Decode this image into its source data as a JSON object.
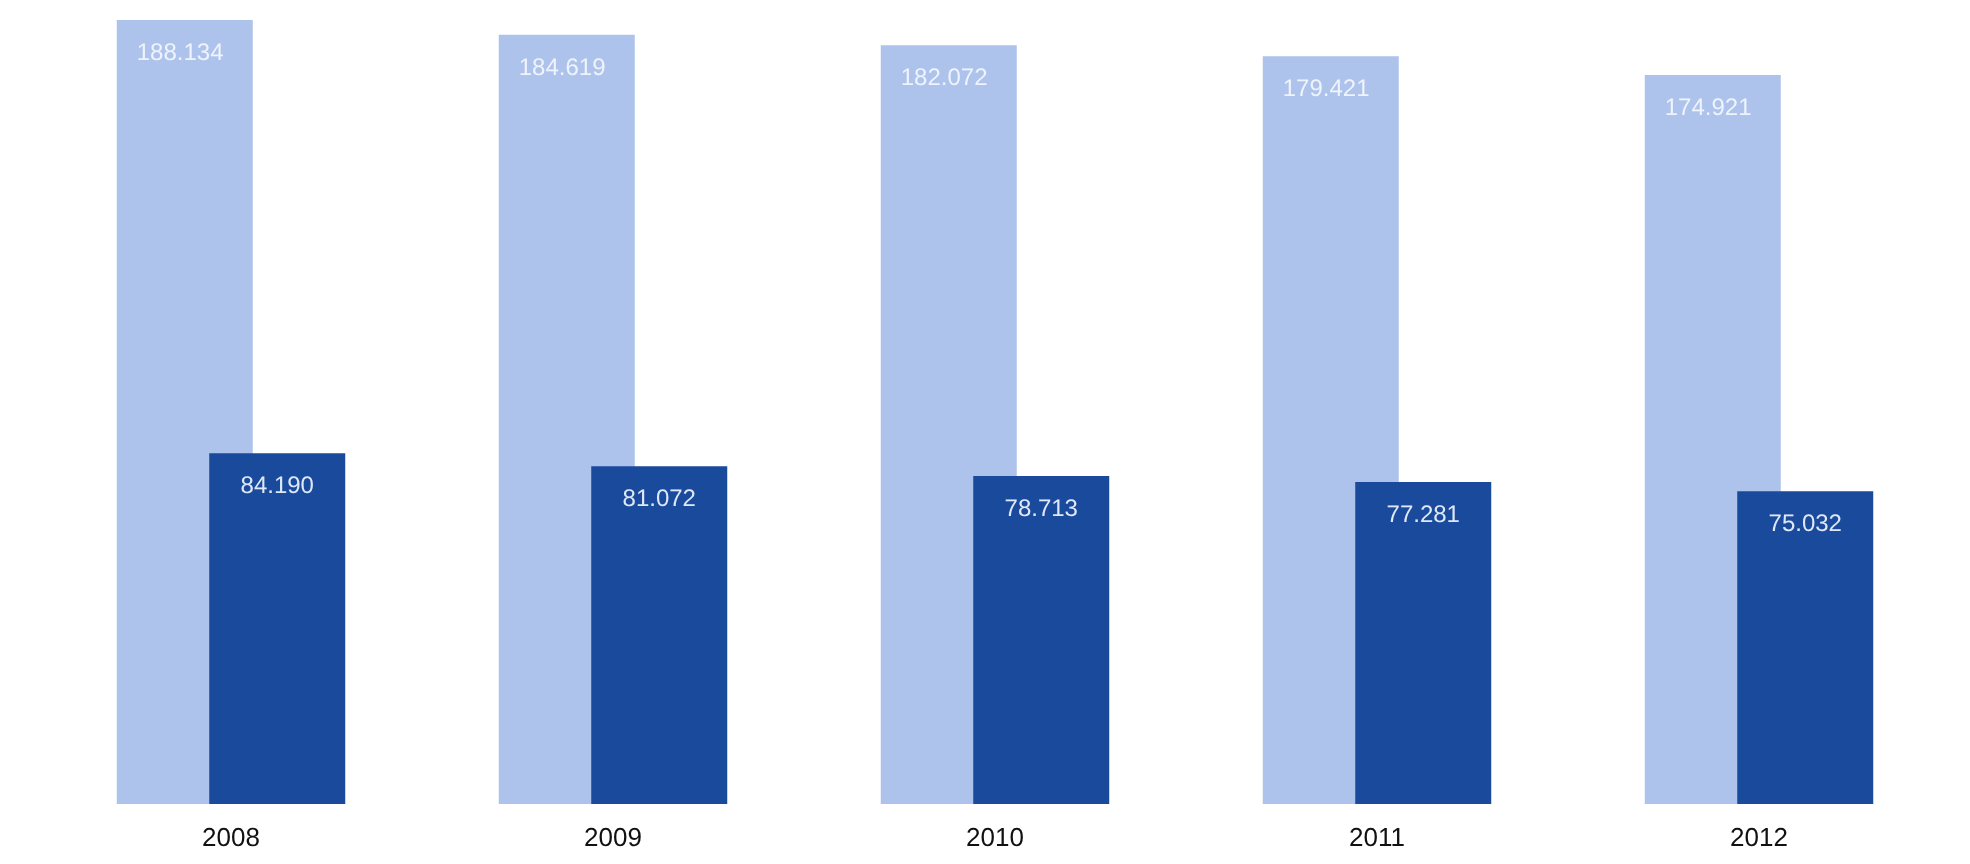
{
  "chart_data": {
    "type": "bar",
    "categories": [
      "2008",
      "2009",
      "2010",
      "2011",
      "2012"
    ],
    "series": [
      {
        "color": "#adc3ec",
        "values": [
          188134,
          184619,
          182072,
          179421,
          174921
        ],
        "value_labels": [
          "188.134",
          "184.619",
          "182.072",
          "179.421",
          "174.921"
        ]
      },
      {
        "color": "#1a4a9c",
        "values": [
          84190,
          81072,
          78713,
          77281,
          75032
        ],
        "value_labels": [
          "84.190",
          "81.072",
          "78.713",
          "77.281",
          "75.032"
        ]
      }
    ],
    "tick_labels": "x"
  }
}
